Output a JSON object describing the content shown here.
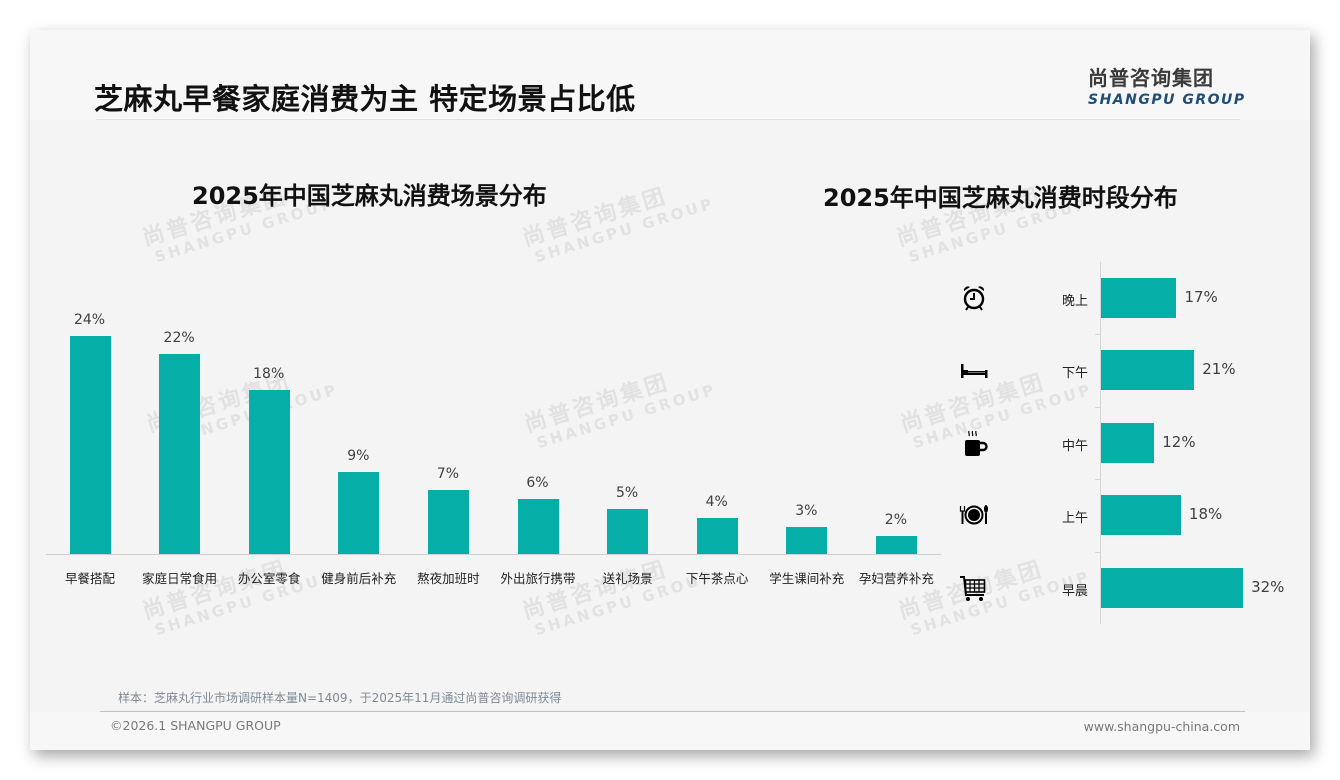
{
  "header": {
    "title": "芝麻丸早餐家庭消费为主 特定场景占比低",
    "logo_cn": "尚普咨询集团",
    "logo_en": "SHANGPU GROUP"
  },
  "watermark": {
    "cn": "尚普咨询集团",
    "en": "SHANGPU GROUP"
  },
  "colors": {
    "bar": "#05aea6",
    "logo_en": "#1f4e79",
    "title": "#111111"
  },
  "left_chart": {
    "title": "2025年中国芝麻丸消费场景分布",
    "categories": [
      "早餐搭配",
      "家庭日常食用",
      "办公室零食",
      "健身前后补充",
      "熬夜加班时",
      "外出旅行携带",
      "送礼场景",
      "下午茶点心",
      "学生课间补充",
      "孕妇营养补充"
    ],
    "value_labels": [
      "24%",
      "22%",
      "18%",
      "9%",
      "7%",
      "6%",
      "5%",
      "4%",
      "3%",
      "2%"
    ]
  },
  "right_chart": {
    "title": "2025年中国芝麻丸消费时段分布",
    "rows": [
      {
        "label": "晚上",
        "value_label": "17%",
        "icon": "alarm-clock-icon"
      },
      {
        "label": "下午",
        "value_label": "21%",
        "icon": "bed-icon"
      },
      {
        "label": "中午",
        "value_label": "12%",
        "icon": "hot-cup-icon"
      },
      {
        "label": "上午",
        "value_label": "18%",
        "icon": "plate-cutlery-icon"
      },
      {
        "label": "早晨",
        "value_label": "32%",
        "icon": "shopping-cart-icon"
      }
    ]
  },
  "footer": {
    "source": "样本：芝麻丸行业市场调研样本量N=1409，于2025年11月通过尚普咨询调研获得",
    "copyright": "©2026.1 SHANGPU GROUP",
    "website": "www.shangpu-china.com"
  },
  "chart_data": [
    {
      "type": "bar",
      "title": "2025年中国芝麻丸消费场景分布",
      "categories": [
        "早餐搭配",
        "家庭日常食用",
        "办公室零食",
        "健身前后补充",
        "熬夜加班时",
        "外出旅行携带",
        "送礼场景",
        "下午茶点心",
        "学生课间补充",
        "孕妇营养补充"
      ],
      "values": [
        24,
        22,
        18,
        9,
        7,
        6,
        5,
        4,
        3,
        2
      ],
      "unit": "%",
      "xlabel": "",
      "ylabel": "",
      "grid": false,
      "legend": "none",
      "orientation": "vertical"
    },
    {
      "type": "bar",
      "title": "2025年中国芝麻丸消费时段分布",
      "categories": [
        "晚上",
        "下午",
        "中午",
        "上午",
        "早晨"
      ],
      "values": [
        17,
        21,
        12,
        18,
        32
      ],
      "unit": "%",
      "xlabel": "",
      "ylabel": "",
      "grid": false,
      "legend": "none",
      "orientation": "horizontal"
    }
  ]
}
